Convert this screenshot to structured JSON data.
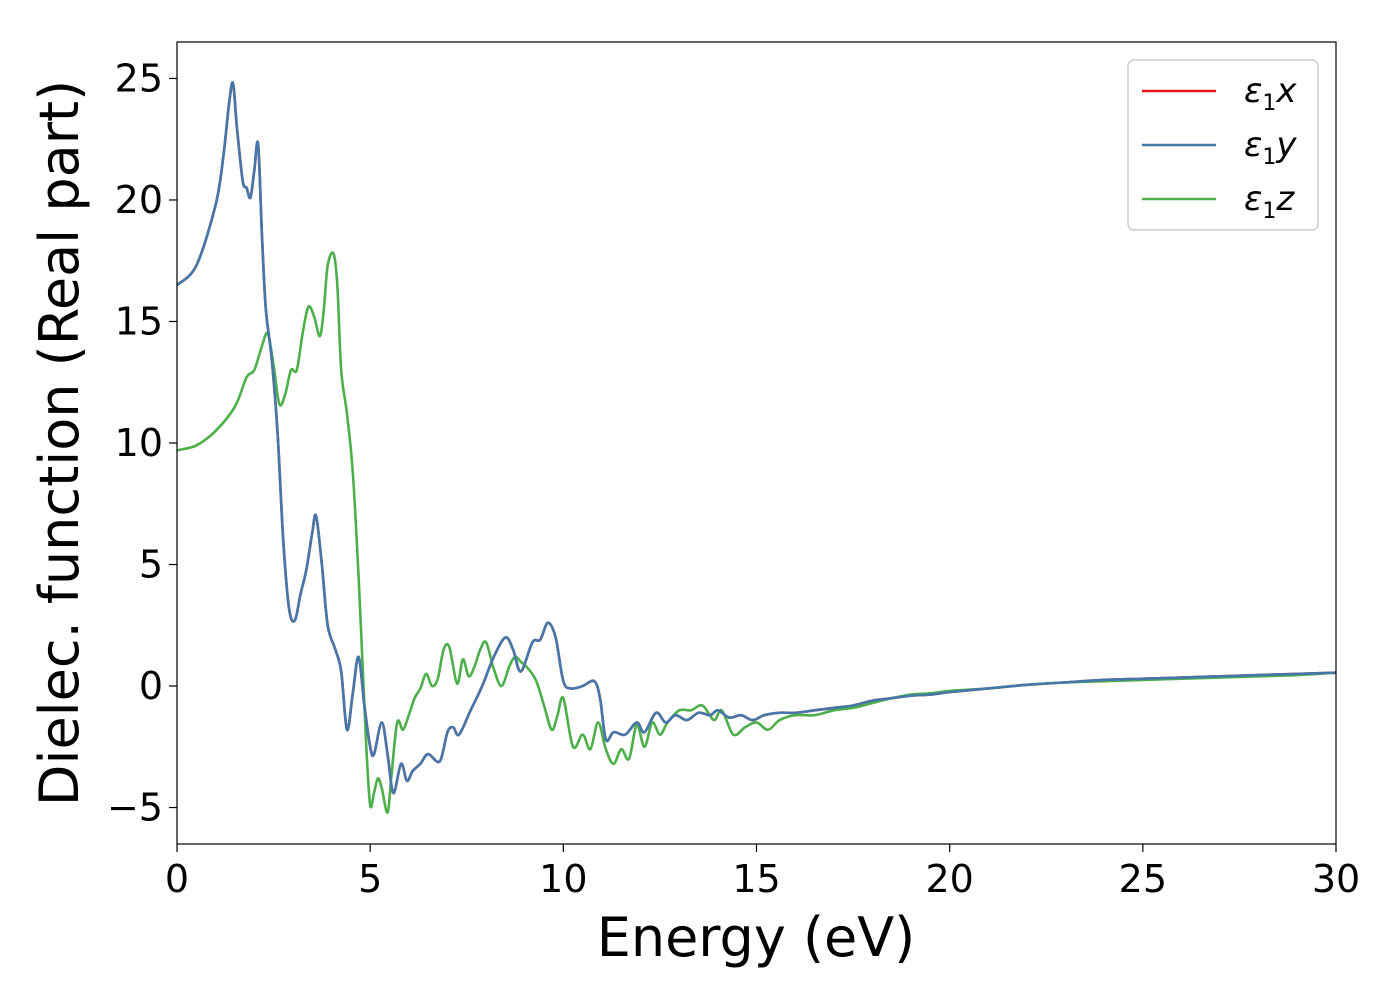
{
  "chart_data": {
    "type": "line",
    "title": "",
    "xlabel": "Energy (eV)",
    "ylabel": "Dielec. function (Real part)",
    "xlim": [
      0,
      30
    ],
    "ylim": [
      -6.5,
      26.5
    ],
    "xticks": [
      0,
      5,
      10,
      15,
      20,
      25,
      30
    ],
    "xtick_labels": [
      "0",
      "5",
      "10",
      "15",
      "20",
      "25",
      "30"
    ],
    "yticks": [
      -5,
      0,
      5,
      10,
      15,
      20,
      25
    ],
    "ytick_labels": [
      "−5",
      "0",
      "5",
      "10",
      "15",
      "20",
      "25"
    ],
    "grid": false,
    "legend_position": "top-right",
    "series": [
      {
        "name": "ε1x",
        "label_base": "ε",
        "label_sub": "1",
        "label_var": "x",
        "color": "#e41a1c",
        "x": [
          0,
          0.5,
          1.0,
          1.2,
          1.35,
          1.45,
          1.55,
          1.7,
          1.8,
          1.9,
          2.0,
          2.1,
          2.2,
          2.3,
          2.45,
          2.6,
          2.75,
          2.9,
          3.05,
          3.2,
          3.35,
          3.5,
          3.6,
          3.75,
          3.9,
          4.1,
          4.25,
          4.4,
          4.55,
          4.7,
          4.85,
          5.0,
          5.1,
          5.3,
          5.45,
          5.6,
          5.8,
          5.95,
          6.1,
          6.3,
          6.5,
          6.8,
          7.0,
          7.15,
          7.3,
          7.6,
          7.9,
          8.2,
          8.5,
          8.7,
          8.9,
          9.2,
          9.4,
          9.6,
          9.8,
          10.0,
          10.2,
          10.5,
          10.8,
          10.95,
          11.1,
          11.3,
          11.6,
          11.9,
          12.1,
          12.4,
          12.65,
          12.9,
          13.2,
          13.5,
          13.8,
          14.0,
          14.3,
          14.6,
          14.9,
          15.2,
          15.6,
          16.0,
          16.5,
          17.0,
          17.5,
          18.0,
          18.5,
          19.0,
          19.5,
          20.0,
          21.0,
          22.0,
          23.0,
          24.0,
          25.0,
          26.0,
          27.0,
          28.0,
          29.0,
          30.0
        ],
        "y": [
          16.5,
          17.3,
          19.8,
          21.8,
          24.0,
          24.8,
          23.0,
          20.8,
          20.5,
          20.1,
          21.2,
          22.3,
          18.5,
          15.5,
          13.5,
          10.5,
          6.0,
          3.2,
          2.7,
          3.8,
          4.8,
          6.3,
          7.0,
          5.0,
          2.5,
          1.5,
          0.6,
          -1.8,
          -0.3,
          1.2,
          -0.8,
          -2.5,
          -2.8,
          -1.5,
          -2.8,
          -4.4,
          -3.2,
          -3.9,
          -3.5,
          -3.2,
          -2.8,
          -3.1,
          -1.9,
          -1.7,
          -2.0,
          -1.0,
          0.0,
          1.2,
          2.0,
          1.5,
          0.6,
          1.8,
          1.9,
          2.6,
          2.0,
          0.2,
          -0.1,
          0.0,
          0.2,
          -0.5,
          -2.2,
          -1.9,
          -2.0,
          -1.5,
          -1.9,
          -1.1,
          -1.5,
          -1.2,
          -1.4,
          -1.1,
          -1.2,
          -1.0,
          -1.3,
          -1.2,
          -1.4,
          -1.2,
          -1.1,
          -1.1,
          -1.0,
          -0.9,
          -0.8,
          -0.6,
          -0.5,
          -0.4,
          -0.35,
          -0.25,
          -0.1,
          0.05,
          0.15,
          0.25,
          0.3,
          0.35,
          0.4,
          0.45,
          0.5,
          0.55
        ]
      },
      {
        "name": "ε1y",
        "label_base": "ε",
        "label_sub": "1",
        "label_var": "y",
        "color": "#4477aa",
        "x": [
          0,
          0.5,
          1.0,
          1.2,
          1.35,
          1.45,
          1.55,
          1.7,
          1.8,
          1.9,
          2.0,
          2.1,
          2.2,
          2.3,
          2.45,
          2.6,
          2.75,
          2.9,
          3.05,
          3.2,
          3.35,
          3.5,
          3.6,
          3.75,
          3.9,
          4.1,
          4.25,
          4.4,
          4.55,
          4.7,
          4.85,
          5.0,
          5.1,
          5.3,
          5.45,
          5.6,
          5.8,
          5.95,
          6.1,
          6.3,
          6.5,
          6.8,
          7.0,
          7.15,
          7.3,
          7.6,
          7.9,
          8.2,
          8.5,
          8.7,
          8.9,
          9.2,
          9.4,
          9.6,
          9.8,
          10.0,
          10.2,
          10.5,
          10.8,
          10.95,
          11.1,
          11.3,
          11.6,
          11.9,
          12.1,
          12.4,
          12.65,
          12.9,
          13.2,
          13.5,
          13.8,
          14.0,
          14.3,
          14.6,
          14.9,
          15.2,
          15.6,
          16.0,
          16.5,
          17.0,
          17.5,
          18.0,
          18.5,
          19.0,
          19.5,
          20.0,
          21.0,
          22.0,
          23.0,
          24.0,
          25.0,
          26.0,
          27.0,
          28.0,
          29.0,
          30.0
        ],
        "y": [
          16.5,
          17.3,
          19.8,
          21.8,
          24.0,
          24.8,
          23.0,
          20.8,
          20.5,
          20.1,
          21.2,
          22.3,
          18.5,
          15.5,
          13.5,
          10.5,
          6.0,
          3.2,
          2.7,
          3.8,
          4.8,
          6.3,
          7.0,
          5.0,
          2.5,
          1.5,
          0.6,
          -1.8,
          -0.3,
          1.2,
          -0.8,
          -2.5,
          -2.8,
          -1.5,
          -2.8,
          -4.4,
          -3.2,
          -3.9,
          -3.5,
          -3.2,
          -2.8,
          -3.1,
          -1.9,
          -1.7,
          -2.0,
          -1.0,
          0.0,
          1.2,
          2.0,
          1.5,
          0.6,
          1.8,
          1.9,
          2.6,
          2.0,
          0.2,
          -0.1,
          0.0,
          0.2,
          -0.5,
          -2.2,
          -1.9,
          -2.0,
          -1.5,
          -1.9,
          -1.1,
          -1.5,
          -1.2,
          -1.4,
          -1.1,
          -1.2,
          -1.0,
          -1.3,
          -1.2,
          -1.4,
          -1.2,
          -1.1,
          -1.1,
          -1.0,
          -0.9,
          -0.8,
          -0.6,
          -0.5,
          -0.4,
          -0.35,
          -0.25,
          -0.1,
          0.05,
          0.15,
          0.25,
          0.3,
          0.35,
          0.4,
          0.45,
          0.5,
          0.55
        ]
      },
      {
        "name": "ε1z",
        "label_base": "ε",
        "label_sub": "1",
        "label_var": "z",
        "color": "#4daf4a",
        "x": [
          0,
          0.5,
          1.0,
          1.5,
          1.8,
          2.0,
          2.2,
          2.35,
          2.5,
          2.65,
          2.8,
          2.95,
          3.1,
          3.25,
          3.4,
          3.55,
          3.7,
          3.8,
          3.9,
          4.05,
          4.15,
          4.25,
          4.4,
          4.55,
          4.7,
          4.8,
          4.9,
          5.0,
          5.1,
          5.2,
          5.3,
          5.45,
          5.55,
          5.7,
          5.85,
          6.0,
          6.15,
          6.3,
          6.45,
          6.6,
          6.75,
          6.9,
          7.05,
          7.25,
          7.4,
          7.55,
          7.7,
          7.85,
          8.0,
          8.2,
          8.4,
          8.6,
          8.75,
          8.9,
          9.1,
          9.3,
          9.5,
          9.7,
          9.85,
          10.0,
          10.25,
          10.5,
          10.7,
          10.9,
          11.1,
          11.3,
          11.5,
          11.7,
          11.9,
          12.1,
          12.3,
          12.5,
          12.7,
          13.0,
          13.3,
          13.6,
          13.9,
          14.1,
          14.4,
          14.7,
          15.0,
          15.3,
          15.6,
          16.0,
          16.5,
          17.0,
          17.5,
          18.0,
          18.5,
          19.0,
          19.5,
          20.0,
          21.0,
          22.0,
          23.0,
          24.0,
          25.0,
          26.0,
          27.0,
          28.0,
          29.0,
          30.0
        ],
        "y": [
          9.7,
          9.9,
          10.5,
          11.5,
          12.7,
          13.0,
          14.0,
          14.5,
          13.2,
          11.6,
          12.0,
          13.0,
          13.0,
          14.5,
          15.6,
          15.2,
          14.4,
          15.5,
          17.3,
          17.8,
          16.5,
          13.0,
          11.2,
          8.8,
          4.5,
          1.0,
          -2.5,
          -4.9,
          -4.4,
          -3.8,
          -4.2,
          -5.2,
          -3.7,
          -1.5,
          -1.8,
          -1.2,
          -0.5,
          -0.1,
          0.5,
          0.0,
          0.3,
          1.5,
          1.6,
          0.1,
          1.1,
          0.4,
          0.8,
          1.5,
          1.8,
          0.7,
          0.0,
          0.8,
          1.2,
          1.0,
          0.7,
          0.2,
          -0.8,
          -1.8,
          -1.2,
          -0.5,
          -2.5,
          -2.0,
          -2.6,
          -1.5,
          -2.6,
          -3.2,
          -2.6,
          -3.0,
          -1.6,
          -2.5,
          -1.5,
          -2.0,
          -1.5,
          -1.0,
          -1.0,
          -0.8,
          -1.4,
          -1.0,
          -2.0,
          -1.7,
          -1.5,
          -1.8,
          -1.4,
          -1.2,
          -1.2,
          -1.0,
          -0.9,
          -0.7,
          -0.5,
          -0.35,
          -0.3,
          -0.2,
          -0.1,
          0.05,
          0.15,
          0.2,
          0.25,
          0.3,
          0.35,
          0.4,
          0.45,
          0.55
        ]
      }
    ]
  }
}
